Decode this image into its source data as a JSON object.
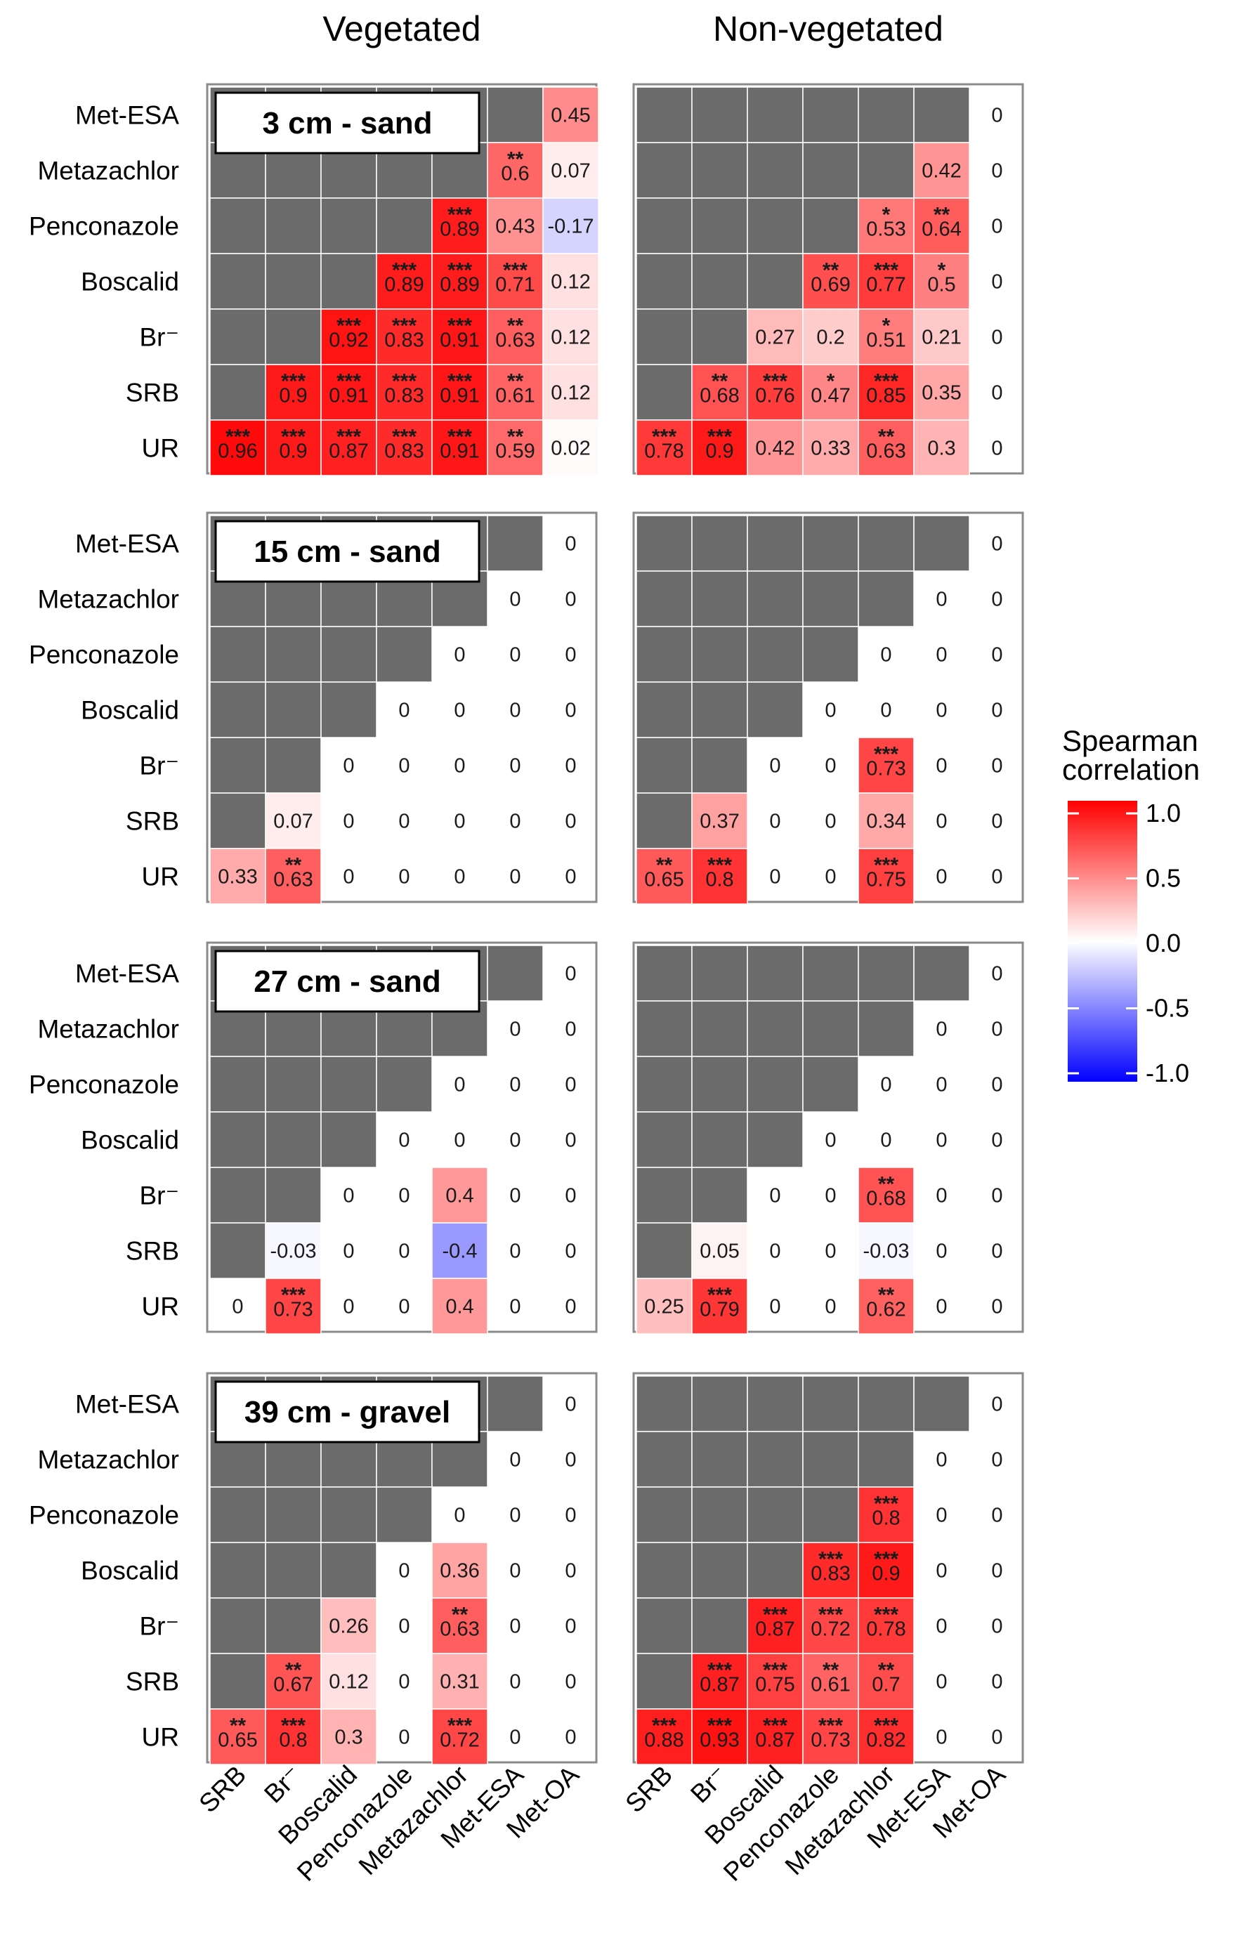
{
  "chart_data": {
    "type": "heatmap",
    "column_headers": [
      "Vegetated",
      "Non-vegetated"
    ],
    "row_labels": [
      "Met-ESA",
      "Metazachlor",
      "Penconazole",
      "Boscalid",
      "Br⁻",
      "SRB",
      "UR"
    ],
    "column_labels": [
      "SRB",
      "Br⁻",
      "Boscalid",
      "Penconazole",
      "Metazachlor",
      "Met-ESA",
      "Met-OA"
    ],
    "legend": {
      "title": [
        "Spearman",
        "correlation"
      ],
      "ticks": [
        1.0,
        0.5,
        0.0,
        -0.5,
        -1.0
      ],
      "tick_labels": [
        "1.0",
        "0.5",
        "0.0",
        "-0.5",
        "-1.0"
      ],
      "range": [
        -1,
        1
      ],
      "colors": {
        "low": "#0000ff",
        "mid": "#ffffff",
        "high": "#ff0000"
      }
    },
    "mask_color": "#6b6b6b",
    "panels": [
      {
        "label": "3 cm - sand",
        "vegetated": {
          "values": [
            [
              null,
              null,
              null,
              null,
              null,
              null,
              0.45
            ],
            [
              null,
              null,
              null,
              null,
              null,
              0.6,
              0.07
            ],
            [
              null,
              null,
              null,
              null,
              0.89,
              0.43,
              -0.17
            ],
            [
              null,
              null,
              null,
              0.89,
              0.89,
              0.71,
              0.12
            ],
            [
              null,
              null,
              0.92,
              0.83,
              0.91,
              0.63,
              0.12
            ],
            [
              null,
              0.9,
              0.91,
              0.83,
              0.91,
              0.61,
              0.12
            ],
            [
              0.96,
              0.9,
              0.87,
              0.83,
              0.91,
              0.59,
              0.02
            ]
          ],
          "stars": [
            [
              "",
              "",
              "",
              "",
              "",
              "",
              ""
            ],
            [
              "",
              "",
              "",
              "",
              "",
              "**",
              ""
            ],
            [
              "",
              "",
              "",
              "",
              "***",
              "",
              ""
            ],
            [
              "",
              "",
              "",
              "***",
              "***",
              "***",
              ""
            ],
            [
              "",
              "",
              "***",
              "***",
              "***",
              "**",
              ""
            ],
            [
              "",
              "***",
              "***",
              "***",
              "***",
              "**",
              ""
            ],
            [
              "***",
              "***",
              "***",
              "***",
              "***",
              "**",
              ""
            ]
          ]
        },
        "non_vegetated": {
          "values": [
            [
              null,
              null,
              null,
              null,
              null,
              null,
              0
            ],
            [
              null,
              null,
              null,
              null,
              null,
              0.42,
              0
            ],
            [
              null,
              null,
              null,
              null,
              0.53,
              0.64,
              0
            ],
            [
              null,
              null,
              null,
              0.69,
              0.77,
              0.5,
              0
            ],
            [
              null,
              null,
              0.27,
              0.2,
              0.51,
              0.21,
              0
            ],
            [
              null,
              0.68,
              0.76,
              0.47,
              0.85,
              0.35,
              0
            ],
            [
              0.78,
              0.9,
              0.42,
              0.33,
              0.63,
              0.3,
              0
            ]
          ],
          "stars": [
            [
              "",
              "",
              "",
              "",
              "",
              "",
              ""
            ],
            [
              "",
              "",
              "",
              "",
              "",
              "",
              ""
            ],
            [
              "",
              "",
              "",
              "",
              "*",
              "**",
              ""
            ],
            [
              "",
              "",
              "",
              "**",
              "***",
              "*",
              ""
            ],
            [
              "",
              "",
              "",
              "",
              "*",
              "",
              ""
            ],
            [
              "",
              "**",
              "***",
              "*",
              "***",
              "",
              ""
            ],
            [
              "***",
              "***",
              "",
              "",
              "**",
              "",
              ""
            ]
          ]
        }
      },
      {
        "label": "15 cm - sand",
        "vegetated": {
          "values": [
            [
              null,
              null,
              null,
              null,
              null,
              null,
              0
            ],
            [
              null,
              null,
              null,
              null,
              null,
              0,
              0
            ],
            [
              null,
              null,
              null,
              null,
              0,
              0,
              0
            ],
            [
              null,
              null,
              null,
              0,
              0,
              0,
              0
            ],
            [
              null,
              null,
              0,
              0,
              0,
              0,
              0
            ],
            [
              null,
              0.07,
              0,
              0,
              0,
              0,
              0
            ],
            [
              0.33,
              0.63,
              0,
              0,
              0,
              0,
              0
            ]
          ],
          "stars": [
            [
              "",
              "",
              "",
              "",
              "",
              "",
              ""
            ],
            [
              "",
              "",
              "",
              "",
              "",
              "",
              ""
            ],
            [
              "",
              "",
              "",
              "",
              "",
              "",
              ""
            ],
            [
              "",
              "",
              "",
              "",
              "",
              "",
              ""
            ],
            [
              "",
              "",
              "",
              "",
              "",
              "",
              ""
            ],
            [
              "",
              "",
              "",
              "",
              "",
              "",
              ""
            ],
            [
              "",
              "**",
              "",
              "",
              "",
              "",
              ""
            ]
          ]
        },
        "non_vegetated": {
          "values": [
            [
              null,
              null,
              null,
              null,
              null,
              null,
              0
            ],
            [
              null,
              null,
              null,
              null,
              null,
              0,
              0
            ],
            [
              null,
              null,
              null,
              null,
              0,
              0,
              0
            ],
            [
              null,
              null,
              null,
              0,
              0,
              0,
              0
            ],
            [
              null,
              null,
              0,
              0,
              0.73,
              0,
              0
            ],
            [
              null,
              0.37,
              0,
              0,
              0.34,
              0,
              0
            ],
            [
              0.65,
              0.8,
              0,
              0,
              0.75,
              0,
              0
            ]
          ],
          "stars": [
            [
              "",
              "",
              "",
              "",
              "",
              "",
              ""
            ],
            [
              "",
              "",
              "",
              "",
              "",
              "",
              ""
            ],
            [
              "",
              "",
              "",
              "",
              "",
              "",
              ""
            ],
            [
              "",
              "",
              "",
              "",
              "",
              "",
              ""
            ],
            [
              "",
              "",
              "",
              "",
              "***",
              "",
              ""
            ],
            [
              "",
              "",
              "",
              "",
              "",
              "",
              ""
            ],
            [
              "**",
              "***",
              "",
              "",
              "***",
              "",
              ""
            ]
          ]
        }
      },
      {
        "label": "27 cm - sand",
        "vegetated": {
          "values": [
            [
              null,
              null,
              null,
              null,
              null,
              null,
              0
            ],
            [
              null,
              null,
              null,
              null,
              null,
              0,
              0
            ],
            [
              null,
              null,
              null,
              null,
              0,
              0,
              0
            ],
            [
              null,
              null,
              null,
              0,
              0,
              0,
              0
            ],
            [
              null,
              null,
              0,
              0,
              0.4,
              0,
              0
            ],
            [
              null,
              -0.03,
              0,
              0,
              -0.4,
              0,
              0
            ],
            [
              0,
              0.73,
              0,
              0,
              0.4,
              0,
              0
            ]
          ],
          "stars": [
            [
              "",
              "",
              "",
              "",
              "",
              "",
              ""
            ],
            [
              "",
              "",
              "",
              "",
              "",
              "",
              ""
            ],
            [
              "",
              "",
              "",
              "",
              "",
              "",
              ""
            ],
            [
              "",
              "",
              "",
              "",
              "",
              "",
              ""
            ],
            [
              "",
              "",
              "",
              "",
              "",
              "",
              ""
            ],
            [
              "",
              "",
              "",
              "",
              "",
              "",
              ""
            ],
            [
              "",
              "***",
              "",
              "",
              "",
              "",
              ""
            ]
          ]
        },
        "non_vegetated": {
          "values": [
            [
              null,
              null,
              null,
              null,
              null,
              null,
              0
            ],
            [
              null,
              null,
              null,
              null,
              null,
              0,
              0
            ],
            [
              null,
              null,
              null,
              null,
              0,
              0,
              0
            ],
            [
              null,
              null,
              null,
              0,
              0,
              0,
              0
            ],
            [
              null,
              null,
              0,
              0,
              0.68,
              0,
              0
            ],
            [
              null,
              0.05,
              0,
              0,
              -0.03,
              0,
              0
            ],
            [
              0.25,
              0.79,
              0,
              0,
              0.62,
              0,
              0
            ]
          ],
          "stars": [
            [
              "",
              "",
              "",
              "",
              "",
              "",
              ""
            ],
            [
              "",
              "",
              "",
              "",
              "",
              "",
              ""
            ],
            [
              "",
              "",
              "",
              "",
              "",
              "",
              ""
            ],
            [
              "",
              "",
              "",
              "",
              "",
              "",
              ""
            ],
            [
              "",
              "",
              "",
              "",
              "**",
              "",
              ""
            ],
            [
              "",
              "",
              "",
              "",
              "",
              "",
              ""
            ],
            [
              "",
              "***",
              "",
              "",
              "**",
              "",
              ""
            ]
          ]
        }
      },
      {
        "label": "39 cm - gravel",
        "vegetated": {
          "values": [
            [
              null,
              null,
              null,
              null,
              null,
              null,
              0
            ],
            [
              null,
              null,
              null,
              null,
              null,
              0,
              0
            ],
            [
              null,
              null,
              null,
              null,
              0,
              0,
              0
            ],
            [
              null,
              null,
              null,
              0,
              0.36,
              0,
              0
            ],
            [
              null,
              null,
              0.26,
              0,
              0.63,
              0,
              0
            ],
            [
              null,
              0.67,
              0.12,
              0,
              0.31,
              0,
              0
            ],
            [
              0.65,
              0.8,
              0.3,
              0,
              0.72,
              0,
              0
            ]
          ],
          "stars": [
            [
              "",
              "",
              "",
              "",
              "",
              "",
              ""
            ],
            [
              "",
              "",
              "",
              "",
              "",
              "",
              ""
            ],
            [
              "",
              "",
              "",
              "",
              "",
              "",
              ""
            ],
            [
              "",
              "",
              "",
              "",
              "",
              "",
              ""
            ],
            [
              "",
              "",
              "",
              "",
              "**",
              "",
              ""
            ],
            [
              "",
              "**",
              "",
              "",
              "",
              "",
              ""
            ],
            [
              "**",
              "***",
              "",
              "",
              "***",
              "",
              ""
            ]
          ]
        },
        "non_vegetated": {
          "values": [
            [
              null,
              null,
              null,
              null,
              null,
              null,
              0
            ],
            [
              null,
              null,
              null,
              null,
              null,
              0,
              0
            ],
            [
              null,
              null,
              null,
              null,
              0.8,
              0,
              0
            ],
            [
              null,
              null,
              null,
              0.83,
              0.9,
              0,
              0
            ],
            [
              null,
              null,
              0.87,
              0.72,
              0.78,
              0,
              0
            ],
            [
              null,
              0.87,
              0.75,
              0.61,
              0.7,
              0,
              0
            ],
            [
              0.88,
              0.93,
              0.87,
              0.73,
              0.82,
              0,
              0
            ]
          ],
          "stars": [
            [
              "",
              "",
              "",
              "",
              "",
              "",
              ""
            ],
            [
              "",
              "",
              "",
              "",
              "",
              "",
              ""
            ],
            [
              "",
              "",
              "",
              "",
              "***",
              "",
              ""
            ],
            [
              "",
              "",
              "",
              "***",
              "***",
              "",
              ""
            ],
            [
              "",
              "",
              "***",
              "***",
              "***",
              "",
              ""
            ],
            [
              "",
              "***",
              "***",
              "**",
              "**",
              "",
              ""
            ],
            [
              "***",
              "***",
              "***",
              "***",
              "***",
              "",
              ""
            ]
          ]
        }
      }
    ]
  }
}
